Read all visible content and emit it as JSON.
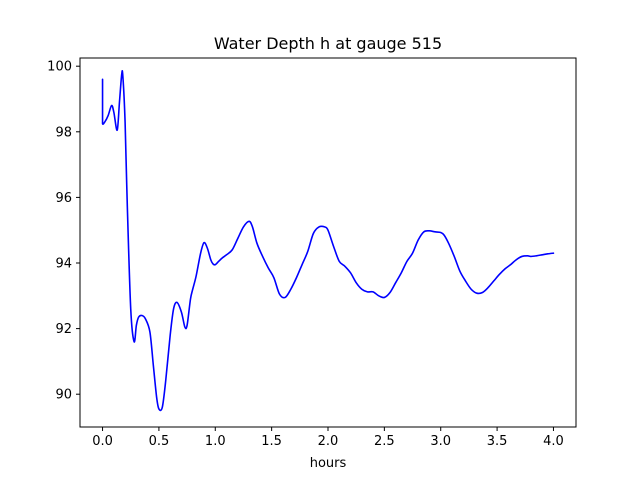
{
  "chart_data": {
    "type": "line",
    "title": "Water Depth h at gauge 515",
    "xlabel": "hours",
    "ylabel": "",
    "xlim": [
      -0.2,
      4.2
    ],
    "ylim": [
      89.0,
      100.25
    ],
    "xticks": [
      0.0,
      0.5,
      1.0,
      1.5,
      2.0,
      2.5,
      3.0,
      3.5,
      4.0
    ],
    "xtick_labels": [
      "0.0",
      "0.5",
      "1.0",
      "1.5",
      "2.0",
      "2.5",
      "3.0",
      "3.5",
      "4.0"
    ],
    "yticks": [
      90,
      92,
      94,
      96,
      98,
      100
    ],
    "ytick_labels": [
      "90",
      "92",
      "94",
      "96",
      "98",
      "100"
    ],
    "grid": false,
    "series": [
      {
        "color": "#0000ff",
        "x": [
          0.0,
          0.0,
          0.0,
          0.02,
          0.05,
          0.08,
          0.1,
          0.13,
          0.15,
          0.17,
          0.18,
          0.2,
          0.22,
          0.25,
          0.28,
          0.3,
          0.32,
          0.35,
          0.38,
          0.42,
          0.45,
          0.48,
          0.5,
          0.53,
          0.56,
          0.6,
          0.63,
          0.66,
          0.7,
          0.73,
          0.75,
          0.78,
          0.8,
          0.83,
          0.87,
          0.9,
          0.93,
          0.96,
          0.98,
          1.0,
          1.03,
          1.06,
          1.1,
          1.15,
          1.2,
          1.25,
          1.3,
          1.33,
          1.37,
          1.42,
          1.47,
          1.52,
          1.57,
          1.62,
          1.67,
          1.72,
          1.77,
          1.82,
          1.87,
          1.92,
          1.97,
          2.0,
          2.05,
          2.1,
          2.15,
          2.2,
          2.25,
          2.3,
          2.35,
          2.4,
          2.45,
          2.5,
          2.55,
          2.6,
          2.65,
          2.7,
          2.75,
          2.8,
          2.85,
          2.9,
          2.95,
          3.0,
          3.03,
          3.07,
          3.12,
          3.17,
          3.22,
          3.27,
          3.32,
          3.37,
          3.42,
          3.47,
          3.52,
          3.57,
          3.62,
          3.67,
          3.72,
          3.77,
          3.8,
          3.85,
          3.9,
          3.95,
          4.0
        ],
        "y": [
          99.6,
          98.6,
          98.25,
          98.3,
          98.5,
          98.8,
          98.6,
          98.05,
          98.9,
          99.75,
          99.7,
          98.3,
          95.7,
          92.6,
          91.6,
          92.1,
          92.35,
          92.4,
          92.3,
          91.9,
          90.9,
          89.9,
          89.55,
          89.6,
          90.4,
          91.8,
          92.6,
          92.8,
          92.5,
          92.05,
          92.1,
          92.9,
          93.2,
          93.6,
          94.3,
          94.62,
          94.45,
          94.1,
          93.97,
          93.95,
          94.05,
          94.15,
          94.25,
          94.4,
          94.75,
          95.1,
          95.27,
          95.1,
          94.6,
          94.2,
          93.85,
          93.55,
          93.05,
          92.95,
          93.2,
          93.55,
          93.95,
          94.35,
          94.9,
          95.1,
          95.1,
          95.0,
          94.5,
          94.05,
          93.9,
          93.7,
          93.4,
          93.2,
          93.12,
          93.12,
          93.0,
          92.95,
          93.1,
          93.4,
          93.7,
          94.05,
          94.3,
          94.7,
          94.95,
          94.98,
          94.95,
          94.93,
          94.85,
          94.6,
          94.2,
          93.75,
          93.45,
          93.2,
          93.08,
          93.1,
          93.25,
          93.45,
          93.65,
          93.82,
          93.95,
          94.1,
          94.2,
          94.22,
          94.2,
          94.22,
          94.25,
          94.28,
          94.3
        ]
      }
    ]
  }
}
